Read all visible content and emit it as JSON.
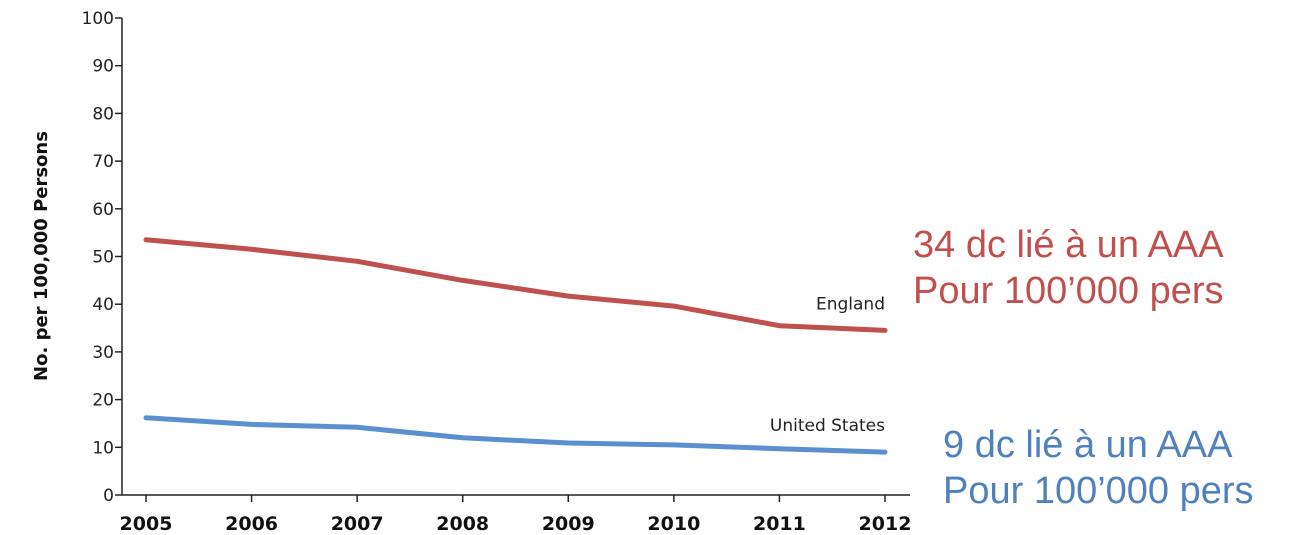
{
  "chart_data": {
    "type": "line",
    "title": "",
    "xlabel": "",
    "ylabel": "No. per 100,000 Persons",
    "x": [
      "2005",
      "2006",
      "2007",
      "2008",
      "2009",
      "2010",
      "2011",
      "2012"
    ],
    "ylim": [
      0,
      100
    ],
    "yticks": [
      0,
      10,
      20,
      30,
      40,
      50,
      60,
      70,
      80,
      90,
      100
    ],
    "grid": false,
    "series": [
      {
        "name": "England",
        "color": "#c0504d",
        "values": [
          53.5,
          51.5,
          49,
          45,
          41.7,
          39.6,
          35.5,
          34.5
        ]
      },
      {
        "name": "United States",
        "color": "#5b8fcf",
        "values": [
          16.2,
          14.8,
          14.2,
          12,
          10.9,
          10.5,
          9.7,
          9
        ]
      }
    ],
    "annotations": [
      {
        "lines": [
          "34 dc lié à un AAA",
          "Pour 100’000 pers"
        ],
        "color": "#c0504d"
      },
      {
        "lines": [
          "9 dc lié à un AAA",
          "Pour 100’000 pers"
        ],
        "color": "#4f81bd"
      }
    ]
  }
}
